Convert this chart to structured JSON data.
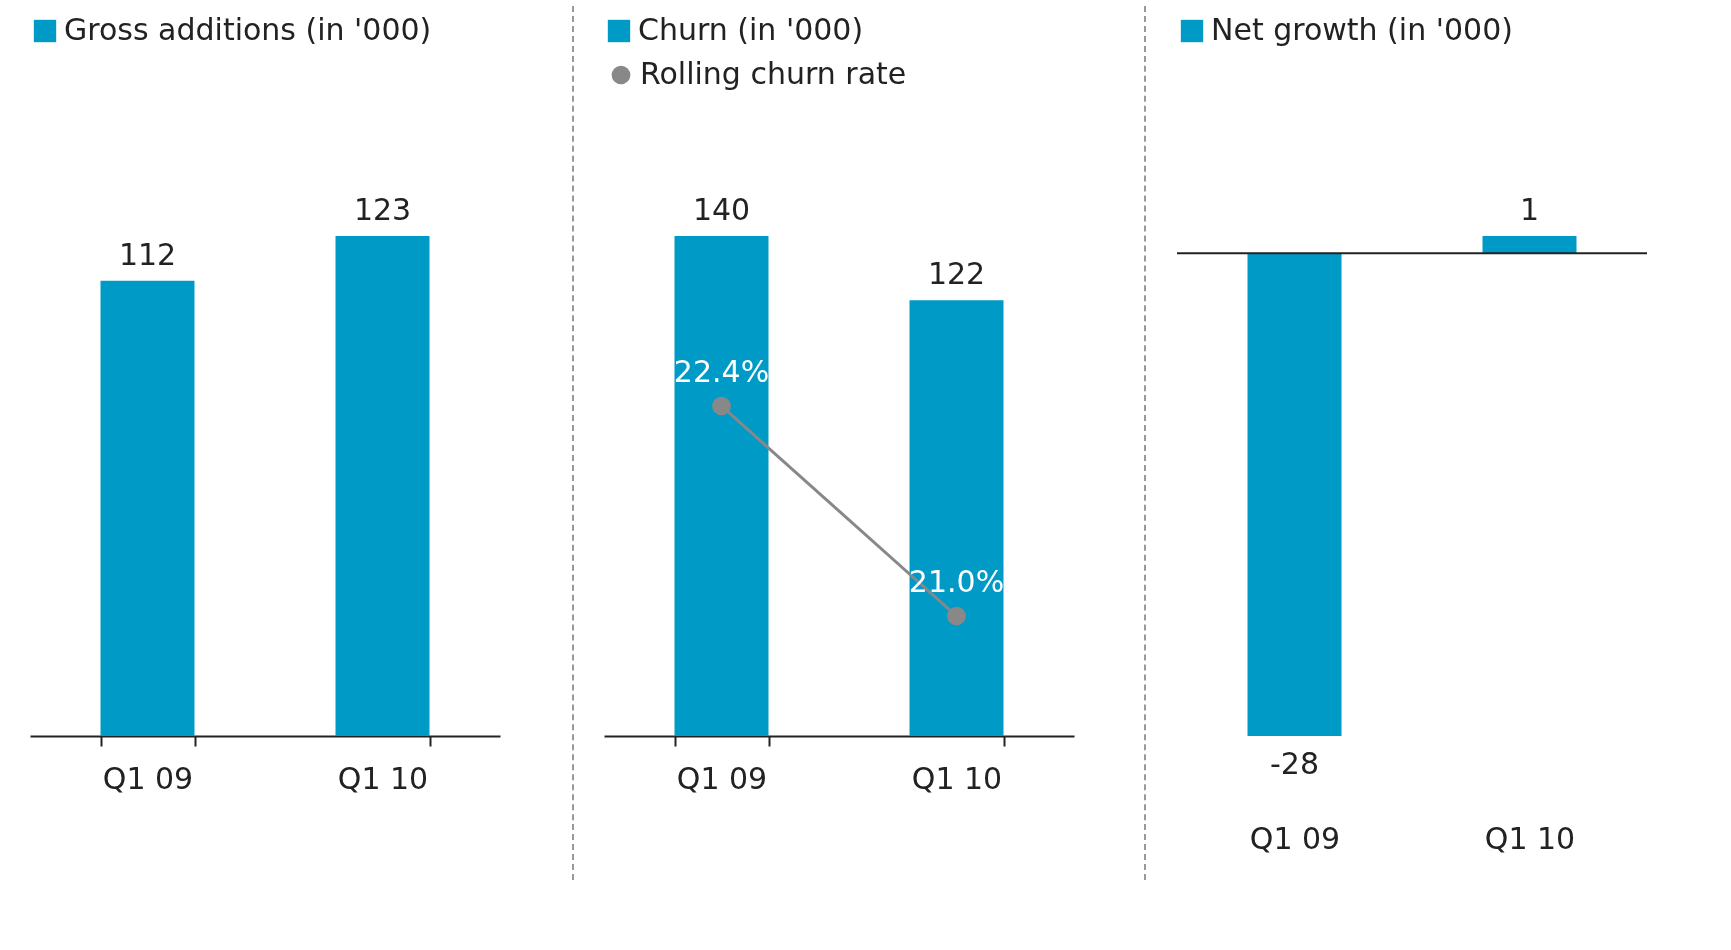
{
  "chart_data": [
    {
      "type": "bar",
      "categories": [
        "Q1 09",
        "Q1 10"
      ],
      "series": [
        {
          "name": "Gross additions (in '000)",
          "color": "#009ac7",
          "values": [
            112,
            123
          ]
        }
      ],
      "data_labels": true,
      "legend": "top left",
      "tick_labels": "x"
    },
    {
      "type": "bar",
      "categories": [
        "Q1 09",
        "Q1 10"
      ],
      "series": [
        {
          "name": "Churn (in '000)",
          "color": "#009ac7",
          "values": [
            140,
            122
          ]
        },
        {
          "name": "Rolling churn rate",
          "type": "line",
          "axis": "y2",
          "color": "#888888",
          "values": [
            22.4,
            21.0
          ],
          "value_labels": [
            "22.4%",
            "21.0%"
          ]
        }
      ],
      "marker": "circle",
      "data_labels": true,
      "legend": "top left",
      "tick_labels": "x"
    },
    {
      "type": "bar",
      "categories": [
        "Q1 09",
        "Q1 10"
      ],
      "series": [
        {
          "name": "Net growth (in '000)",
          "color": "#009ac7",
          "values": [
            -28,
            1
          ]
        }
      ],
      "ref_lines": [
        {
          "axis": "y",
          "value": 0,
          "color": "#222222"
        }
      ],
      "data_labels": true,
      "legend": "top left",
      "tick_labels": "x"
    }
  ]
}
